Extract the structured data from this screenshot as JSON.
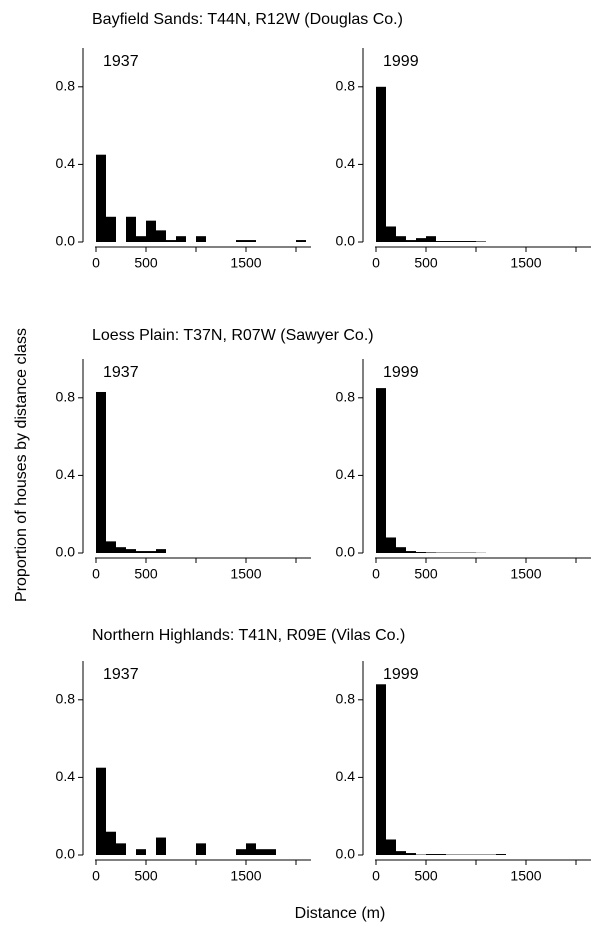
{
  "row_titles": [
    "Bayfield Sands: T44N, R12W (Douglas Co.)",
    "Loess Plain: T37N, R07W (Sawyer Co.)",
    "Northern Highlands: T41N, R09E (Vilas Co.)"
  ],
  "ylabel": "Proportion of houses by distance class",
  "xlabel": "Distance (m)",
  "chart_data": [
    {
      "type": "histogram",
      "title": "1937",
      "color": "#000000",
      "bins": [
        0,
        100,
        200,
        300,
        400,
        500,
        600,
        700,
        800,
        900,
        1000,
        1100,
        1200,
        1300,
        1400,
        1500,
        1600,
        1700,
        1800,
        1900,
        2000,
        2100
      ],
      "values": [
        0.45,
        0.13,
        0,
        0.13,
        0.03,
        0.11,
        0.06,
        0.01,
        0.03,
        0,
        0.03,
        0,
        0,
        0,
        0.01,
        0.01,
        0,
        0,
        0,
        0,
        0.01
      ],
      "xlim": [
        -50,
        2150
      ],
      "ylim": [
        0,
        1
      ],
      "xticks": [
        0,
        500,
        1500
      ],
      "xminorticks": [
        1000,
        2000
      ],
      "yticks": [
        {
          "value": 0,
          "label": "0.0"
        },
        0.4,
        0.8
      ]
    },
    {
      "type": "histogram",
      "title": "1999",
      "color": "#000000",
      "bins": [
        0,
        100,
        200,
        300,
        400,
        500,
        600,
        700,
        800,
        900,
        1000,
        1100,
        1200,
        1300,
        1400,
        1500,
        1600,
        1700,
        1800,
        1900,
        2000,
        2100
      ],
      "values": [
        0.8,
        0.08,
        0.03,
        0.01,
        0.02,
        0.03,
        0.005,
        0.005,
        0.005,
        0.005,
        0.003,
        0,
        0,
        0,
        0,
        0,
        0,
        0,
        0,
        0,
        0
      ],
      "xlim": [
        -50,
        2150
      ],
      "ylim": [
        0,
        1
      ],
      "xticks": [
        0,
        500,
        1500
      ],
      "xminorticks": [
        1000,
        2000
      ],
      "yticks": [
        {
          "value": 0,
          "label": "0.0"
        },
        0.4,
        0.8
      ]
    },
    {
      "type": "histogram",
      "title": "1937",
      "color": "#000000",
      "bins": [
        0,
        100,
        200,
        300,
        400,
        500,
        600,
        700,
        800,
        900,
        1000,
        1100,
        1200,
        1300,
        1400,
        1500,
        1600,
        1700,
        1800,
        1900,
        2000,
        2100
      ],
      "values": [
        0.83,
        0.06,
        0.03,
        0.02,
        0.01,
        0.01,
        0.02,
        0,
        0,
        0,
        0,
        0,
        0,
        0,
        0,
        0,
        0,
        0,
        0,
        0,
        0
      ],
      "xlim": [
        -50,
        2150
      ],
      "ylim": [
        0,
        1
      ],
      "xticks": [
        0,
        500,
        1500
      ],
      "xminorticks": [
        1000,
        2000
      ],
      "yticks": [
        {
          "value": 0,
          "label": "0.0"
        },
        0.4,
        0.8
      ]
    },
    {
      "type": "histogram",
      "title": "1999",
      "color": "#000000",
      "bins": [
        0,
        100,
        200,
        300,
        400,
        500,
        600,
        700,
        800,
        900,
        1000,
        1100,
        1200,
        1300,
        1400,
        1500,
        1600,
        1700,
        1800,
        1900,
        2000,
        2100
      ],
      "values": [
        0.85,
        0.08,
        0.03,
        0.01,
        0.005,
        0.003,
        0.002,
        0.002,
        0.002,
        0.002,
        0.001,
        0,
        0,
        0,
        0,
        0,
        0,
        0,
        0,
        0,
        0
      ],
      "xlim": [
        -50,
        2150
      ],
      "ylim": [
        0,
        1
      ],
      "xticks": [
        0,
        500,
        1500
      ],
      "xminorticks": [
        1000,
        2000
      ],
      "yticks": [
        {
          "value": 0,
          "label": "0.0"
        },
        0.4,
        0.8
      ]
    },
    {
      "type": "histogram",
      "title": "1937",
      "color": "#000000",
      "bins": [
        0,
        100,
        200,
        300,
        400,
        500,
        600,
        700,
        800,
        900,
        1000,
        1100,
        1200,
        1300,
        1400,
        1500,
        1600,
        1700,
        1800,
        1900,
        2000,
        2100
      ],
      "values": [
        0.45,
        0.12,
        0.06,
        0,
        0.03,
        0,
        0.09,
        0,
        0,
        0,
        0.06,
        0,
        0,
        0,
        0.03,
        0.06,
        0.03,
        0.03,
        0,
        0,
        0
      ],
      "xlim": [
        -50,
        2150
      ],
      "ylim": [
        0,
        1
      ],
      "xticks": [
        0,
        500,
        1500
      ],
      "xminorticks": [
        1000,
        2000
      ],
      "yticks": [
        {
          "value": 0,
          "label": "0.0"
        },
        0.4,
        0.8
      ]
    },
    {
      "type": "histogram",
      "title": "1999",
      "color": "#000000",
      "bins": [
        0,
        100,
        200,
        300,
        400,
        500,
        600,
        700,
        800,
        900,
        1000,
        1100,
        1200,
        1300,
        1400,
        1500,
        1600,
        1700,
        1800,
        1900,
        2000,
        2100
      ],
      "values": [
        0.88,
        0.08,
        0.02,
        0.01,
        0.002,
        0.005,
        0.005,
        0.002,
        0.002,
        0.002,
        0.002,
        0.002,
        0.005,
        0,
        0,
        0,
        0,
        0,
        0,
        0,
        0
      ],
      "xlim": [
        -50,
        2150
      ],
      "ylim": [
        0,
        1
      ],
      "xticks": [
        0,
        500,
        1500
      ],
      "xminorticks": [
        1000,
        2000
      ],
      "yticks": [
        {
          "value": 0,
          "label": "0.0"
        },
        0.4,
        0.8
      ]
    }
  ]
}
